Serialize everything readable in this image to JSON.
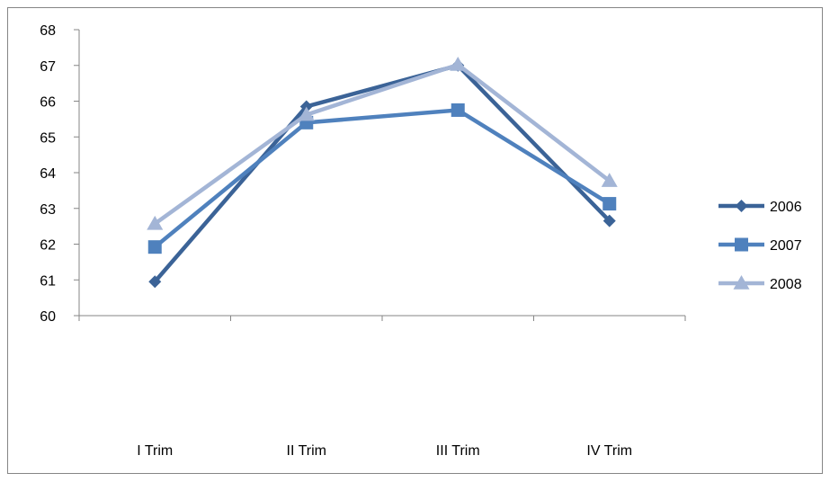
{
  "chart_data": {
    "type": "line",
    "title": "",
    "xlabel": "",
    "ylabel": "",
    "categories": [
      "I Trim",
      "II Trim",
      "III Trim",
      "IV Trim"
    ],
    "ylim": [
      60,
      68
    ],
    "yticks": [
      60,
      61,
      62,
      63,
      64,
      65,
      66,
      67,
      68
    ],
    "grid": false,
    "legend": "right",
    "series": [
      {
        "name": "2006",
        "values": [
          60.95,
          65.85,
          67.0,
          62.65
        ],
        "color": "#3b6397",
        "marker": "diamond"
      },
      {
        "name": "2007",
        "values": [
          61.92,
          65.4,
          65.75,
          63.13
        ],
        "color": "#4f81bd",
        "marker": "square"
      },
      {
        "name": "2008",
        "values": [
          62.57,
          65.62,
          67.02,
          63.77
        ],
        "color": "#a3b5d6",
        "marker": "triangle"
      }
    ]
  }
}
